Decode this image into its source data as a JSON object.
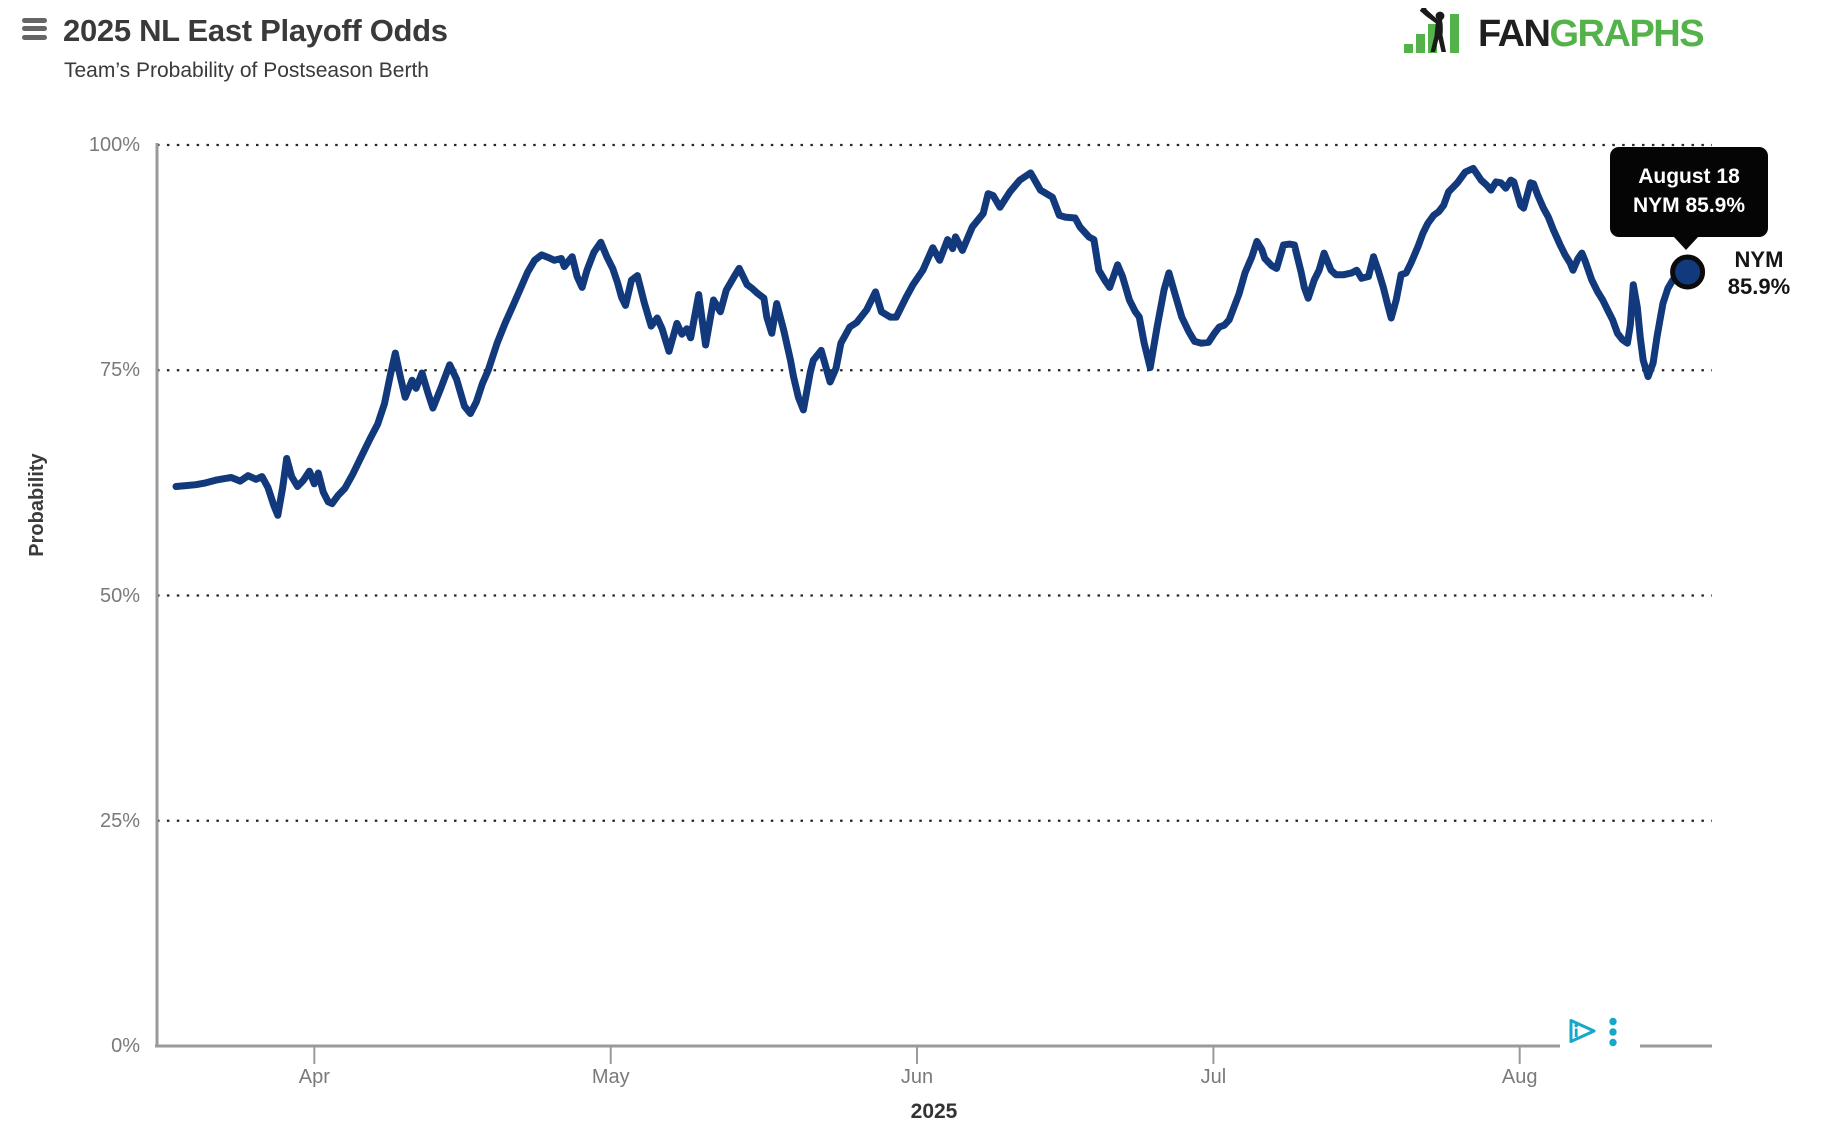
{
  "header": {
    "title": "2025 NL East Playoff Odds",
    "subtitle": "Team’s Probability of Postseason Berth"
  },
  "logo": {
    "fan": "FAN",
    "graphs": "GRAPHS",
    "green": "#54b24b",
    "black": "#1f1f1f"
  },
  "chart_data": {
    "type": "line",
    "title": "2025 NL East Playoff Odds",
    "subtitle": "Team’s Probability of Postseason Berth",
    "ylabel": "Probability",
    "xlabel": "2025",
    "ylim": [
      0,
      100
    ],
    "grid": "horizontal dotted lines at 25% intervals",
    "legend": "none",
    "x_unit": "day index from first plotted day (mid-March); last point is August 18",
    "y_ticks": [
      {
        "label": "100%",
        "value": 100
      },
      {
        "label": "75%",
        "value": 75
      },
      {
        "label": "50%",
        "value": 50
      },
      {
        "label": "25%",
        "value": 25
      },
      {
        "label": "0%",
        "value": 0
      }
    ],
    "x_ticks": [
      {
        "label": "Apr",
        "day": 14
      },
      {
        "label": "May",
        "day": 44
      },
      {
        "label": "Jun",
        "day": 75
      },
      {
        "label": "Jul",
        "day": 105
      },
      {
        "label": "Aug",
        "day": 136
      }
    ],
    "series": [
      {
        "name": "NYM",
        "color": "#12397B",
        "line_width": 7,
        "points": [
          [
            0,
            62.1
          ],
          [
            1,
            62.2
          ],
          [
            2,
            62.3
          ],
          [
            3,
            62.5
          ],
          [
            4,
            62.8
          ],
          [
            5,
            63
          ],
          [
            5.6,
            63.1
          ],
          [
            6.5,
            62.7
          ],
          [
            7.3,
            63.3
          ],
          [
            8.1,
            62.9
          ],
          [
            8.7,
            63.2
          ],
          [
            9.3,
            62
          ],
          [
            9.9,
            60
          ],
          [
            10.3,
            58.9
          ],
          [
            10.8,
            62
          ],
          [
            11.2,
            65.2
          ],
          [
            11.7,
            63.2
          ],
          [
            12.3,
            62.1
          ],
          [
            12.9,
            62.8
          ],
          [
            13.5,
            63.8
          ],
          [
            14,
            62.4
          ],
          [
            14.4,
            63.6
          ],
          [
            14.9,
            61.5
          ],
          [
            15.4,
            60.4
          ],
          [
            15.8,
            60.2
          ],
          [
            16.4,
            61.1
          ],
          [
            17.1,
            61.9
          ],
          [
            17.9,
            63.5
          ],
          [
            18.8,
            65.5
          ],
          [
            19.6,
            67.3
          ],
          [
            20.4,
            69
          ],
          [
            21.1,
            71.3
          ],
          [
            21.7,
            74.5
          ],
          [
            22.2,
            76.9
          ],
          [
            22.7,
            74.3
          ],
          [
            23.2,
            72
          ],
          [
            23.9,
            73.9
          ],
          [
            24.3,
            73
          ],
          [
            24.9,
            74.7
          ],
          [
            25.5,
            72.5
          ],
          [
            26,
            70.8
          ],
          [
            26.8,
            73
          ],
          [
            27.7,
            75.6
          ],
          [
            28.4,
            74
          ],
          [
            29.2,
            71
          ],
          [
            29.8,
            70.2
          ],
          [
            30.4,
            71.5
          ],
          [
            31,
            73.5
          ],
          [
            31.6,
            75
          ],
          [
            32.5,
            78
          ],
          [
            33.3,
            80.2
          ],
          [
            34,
            81.9
          ],
          [
            34.8,
            83.9
          ],
          [
            35.6,
            85.9
          ],
          [
            36.3,
            87.2
          ],
          [
            37,
            87.8
          ],
          [
            37.7,
            87.5
          ],
          [
            38.3,
            87.2
          ],
          [
            39,
            87.4
          ],
          [
            39.3,
            86.5
          ],
          [
            39.8,
            87.2
          ],
          [
            40.1,
            87.6
          ],
          [
            40.6,
            85.4
          ],
          [
            41.1,
            84.2
          ],
          [
            41.6,
            86.1
          ],
          [
            42.3,
            88.1
          ],
          [
            43,
            89.2
          ],
          [
            43.6,
            87.6
          ],
          [
            44.2,
            86.3
          ],
          [
            44.7,
            84.7
          ],
          [
            45.1,
            83.1
          ],
          [
            45.5,
            82.2
          ],
          [
            46.1,
            85
          ],
          [
            46.7,
            85.5
          ],
          [
            47.4,
            82.5
          ],
          [
            48.1,
            79.9
          ],
          [
            48.7,
            80.8
          ],
          [
            49.2,
            79.6
          ],
          [
            49.9,
            77.1
          ],
          [
            50.7,
            80.2
          ],
          [
            51.2,
            79
          ],
          [
            51.7,
            79.6
          ],
          [
            52.1,
            78.6
          ],
          [
            52.9,
            83.4
          ],
          [
            53.6,
            77.8
          ],
          [
            54.4,
            82.8
          ],
          [
            55.1,
            81.5
          ],
          [
            55.7,
            83.9
          ],
          [
            56.5,
            85.4
          ],
          [
            57,
            86.3
          ],
          [
            57.8,
            84.5
          ],
          [
            58.3,
            84.1
          ],
          [
            58.8,
            83.6
          ],
          [
            59.5,
            83
          ],
          [
            59.8,
            80.9
          ],
          [
            60.3,
            79.1
          ],
          [
            60.8,
            82.4
          ],
          [
            61.5,
            79.5
          ],
          [
            62.2,
            76.1
          ],
          [
            62.5,
            74.3
          ],
          [
            63,
            72
          ],
          [
            63.5,
            70.6
          ],
          [
            64.2,
            74.8
          ],
          [
            64.5,
            76.1
          ],
          [
            65.3,
            77.2
          ],
          [
            66.2,
            73.7
          ],
          [
            66.8,
            75.2
          ],
          [
            67.3,
            78
          ],
          [
            68.2,
            79.8
          ],
          [
            68.9,
            80.3
          ],
          [
            69.9,
            81.7
          ],
          [
            70.8,
            83.7
          ],
          [
            71.4,
            81.5
          ],
          [
            72.3,
            80.9
          ],
          [
            72.9,
            80.9
          ],
          [
            73.9,
            83.1
          ],
          [
            74.6,
            84.5
          ],
          [
            75.6,
            86.1
          ],
          [
            76.6,
            88.6
          ],
          [
            77.3,
            87.2
          ],
          [
            78.1,
            89.5
          ],
          [
            78.6,
            88.5
          ],
          [
            78.9,
            89.8
          ],
          [
            79.6,
            88.3
          ],
          [
            80.6,
            90.9
          ],
          [
            81.7,
            92.4
          ],
          [
            82.2,
            94.6
          ],
          [
            82.7,
            94.4
          ],
          [
            83.4,
            93.1
          ],
          [
            84.4,
            94.8
          ],
          [
            85.4,
            96.1
          ],
          [
            86.5,
            96.9
          ],
          [
            87.5,
            95
          ],
          [
            88.7,
            94.2
          ],
          [
            89.4,
            92.2
          ],
          [
            90,
            92
          ],
          [
            91,
            91.9
          ],
          [
            91.5,
            90.9
          ],
          [
            92.4,
            89.8
          ],
          [
            92.9,
            89.5
          ],
          [
            93.4,
            86.1
          ],
          [
            94,
            85
          ],
          [
            94.5,
            84.2
          ],
          [
            95.3,
            86.7
          ],
          [
            95.8,
            85.4
          ],
          [
            96.5,
            82.8
          ],
          [
            97.1,
            81.5
          ],
          [
            97.5,
            80.9
          ],
          [
            98,
            78
          ],
          [
            98.6,
            75.3
          ],
          [
            99.3,
            79.8
          ],
          [
            100,
            83.9
          ],
          [
            100.5,
            85.8
          ],
          [
            101.1,
            83.5
          ],
          [
            101.8,
            80.9
          ],
          [
            102.5,
            79.3
          ],
          [
            103.1,
            78.2
          ],
          [
            103.8,
            78
          ],
          [
            104.5,
            78.1
          ],
          [
            105.1,
            79.1
          ],
          [
            105.6,
            79.8
          ],
          [
            106.1,
            80
          ],
          [
            106.6,
            80.6
          ],
          [
            107.6,
            83.5
          ],
          [
            108.2,
            85.8
          ],
          [
            108.9,
            87.6
          ],
          [
            109.4,
            89.3
          ],
          [
            109.9,
            88.4
          ],
          [
            110.2,
            87.4
          ],
          [
            110.9,
            86.6
          ],
          [
            111.4,
            86.3
          ],
          [
            112.1,
            88.9
          ],
          [
            112.7,
            89
          ],
          [
            113.2,
            88.9
          ],
          [
            113.9,
            85.8
          ],
          [
            114.2,
            84.2
          ],
          [
            114.6,
            83
          ],
          [
            115.2,
            85
          ],
          [
            115.7,
            86.1
          ],
          [
            116.2,
            88
          ],
          [
            116.9,
            86.1
          ],
          [
            117.4,
            85.6
          ],
          [
            118.2,
            85.6
          ],
          [
            119,
            85.8
          ],
          [
            119.5,
            86.1
          ],
          [
            120,
            85.2
          ],
          [
            120.7,
            85.4
          ],
          [
            121.2,
            87.6
          ],
          [
            121.7,
            86
          ],
          [
            122.2,
            84.2
          ],
          [
            122.7,
            82
          ],
          [
            123,
            80.8
          ],
          [
            123.5,
            82.8
          ],
          [
            124,
            85.6
          ],
          [
            124.5,
            85.8
          ],
          [
            125,
            86.9
          ],
          [
            125.7,
            88.7
          ],
          [
            126.2,
            90.2
          ],
          [
            126.7,
            91.3
          ],
          [
            127.3,
            92.2
          ],
          [
            127.8,
            92.6
          ],
          [
            128.3,
            93.3
          ],
          [
            128.8,
            94.8
          ],
          [
            129.7,
            95.8
          ],
          [
            130.5,
            97
          ],
          [
            131.3,
            97.4
          ],
          [
            132.1,
            96.1
          ],
          [
            132.6,
            95.6
          ],
          [
            133.1,
            95
          ],
          [
            133.6,
            95.9
          ],
          [
            134.1,
            95.8
          ],
          [
            134.6,
            95.2
          ],
          [
            135.1,
            96.1
          ],
          [
            135.4,
            95.9
          ],
          [
            136.1,
            93.3
          ],
          [
            136.4,
            93
          ],
          [
            137.1,
            95.8
          ],
          [
            137.4,
            95.7
          ],
          [
            137.8,
            94.5
          ],
          [
            138.4,
            93
          ],
          [
            138.9,
            92
          ],
          [
            139.4,
            90.6
          ],
          [
            140.1,
            88.9
          ],
          [
            140.6,
            87.8
          ],
          [
            141.1,
            86.9
          ],
          [
            141.4,
            86.1
          ],
          [
            141.9,
            87.4
          ],
          [
            142.3,
            88
          ],
          [
            142.6,
            87.2
          ],
          [
            143.3,
            85
          ],
          [
            143.9,
            83.7
          ],
          [
            144.4,
            82.8
          ],
          [
            144.9,
            81.7
          ],
          [
            145.4,
            80.6
          ],
          [
            145.9,
            79.1
          ],
          [
            146.4,
            78.4
          ],
          [
            146.9,
            78
          ],
          [
            147.2,
            80
          ],
          [
            147.5,
            84.5
          ],
          [
            147.9,
            82
          ],
          [
            148.2,
            78.7
          ],
          [
            148.5,
            76.1
          ],
          [
            149,
            74.3
          ],
          [
            149.5,
            75.8
          ],
          [
            149.9,
            78.7
          ],
          [
            150.2,
            80.6
          ],
          [
            150.5,
            82.4
          ],
          [
            151,
            84.1
          ],
          [
            151.5,
            85
          ],
          [
            152,
            85.6
          ],
          [
            153,
            85.9
          ]
        ]
      }
    ],
    "end_point": {
      "day": 153,
      "value": 85.9,
      "date": "August 18",
      "team": "NYM"
    }
  },
  "tooltip": {
    "line1": "August 18",
    "line2": "NYM 85.9%",
    "bg": "#050505",
    "text_color": "#ffffff"
  },
  "end_label": {
    "team": "NYM",
    "value": "85.9%"
  },
  "ad": {
    "color": "#17a7cb",
    "adchoices_icon": "adchoices-play-triangle-icon",
    "options_icon": "kebab-dots-icon"
  }
}
